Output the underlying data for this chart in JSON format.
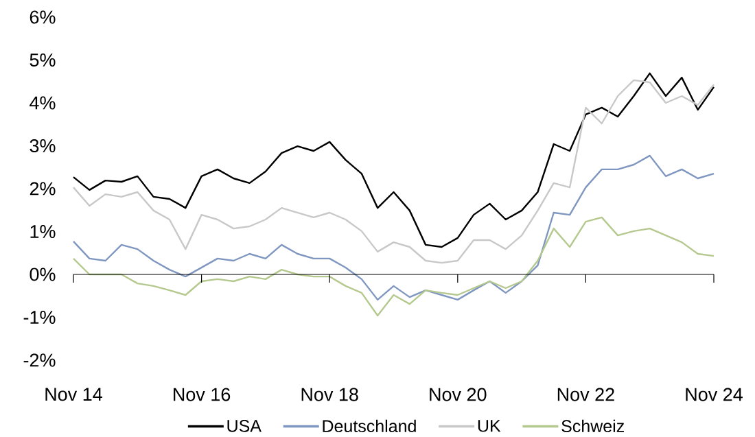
{
  "chart_data": {
    "type": "line",
    "x": [
      "2014-11",
      "2015-02",
      "2015-05",
      "2015-08",
      "2015-11",
      "2016-02",
      "2016-05",
      "2016-08",
      "2016-11",
      "2017-02",
      "2017-05",
      "2017-08",
      "2017-11",
      "2018-02",
      "2018-05",
      "2018-08",
      "2018-11",
      "2019-02",
      "2019-05",
      "2019-08",
      "2019-11",
      "2020-02",
      "2020-05",
      "2020-08",
      "2020-11",
      "2021-02",
      "2021-05",
      "2021-08",
      "2021-11",
      "2022-02",
      "2022-05",
      "2022-08",
      "2022-11",
      "2023-02",
      "2023-05",
      "2023-08",
      "2023-11",
      "2024-02",
      "2024-05",
      "2024-08",
      "2024-11"
    ],
    "series": [
      {
        "name": "USA",
        "color": "#000000",
        "values": [
          2.27,
          1.97,
          2.19,
          2.16,
          2.29,
          1.81,
          1.76,
          1.55,
          2.29,
          2.45,
          2.24,
          2.13,
          2.4,
          2.83,
          2.99,
          2.88,
          3.09,
          2.67,
          2.35,
          1.55,
          1.92,
          1.49,
          0.69,
          0.64,
          0.85,
          1.39,
          1.65,
          1.28,
          1.49,
          1.92,
          3.04,
          2.88,
          3.73,
          3.89,
          3.68,
          4.16,
          4.69,
          4.16,
          4.59,
          3.84,
          4.37
        ]
      },
      {
        "name": "Deutschland",
        "color": "#7f97c0",
        "values": [
          0.77,
          0.37,
          0.32,
          0.69,
          0.59,
          0.32,
          0.11,
          -0.05,
          0.16,
          0.37,
          0.32,
          0.48,
          0.37,
          0.69,
          0.48,
          0.37,
          0.37,
          0.16,
          -0.11,
          -0.59,
          -0.27,
          -0.53,
          -0.37,
          -0.48,
          -0.59,
          -0.37,
          -0.16,
          -0.43,
          -0.16,
          0.21,
          1.44,
          1.39,
          2.03,
          2.45,
          2.45,
          2.56,
          2.77,
          2.29,
          2.45,
          2.24,
          2.35
        ]
      },
      {
        "name": "UK",
        "color": "#c8c8c8",
        "values": [
          2.03,
          1.6,
          1.87,
          1.81,
          1.92,
          1.49,
          1.28,
          0.59,
          1.39,
          1.28,
          1.07,
          1.12,
          1.28,
          1.55,
          1.44,
          1.33,
          1.44,
          1.28,
          1.01,
          0.53,
          0.75,
          0.64,
          0.32,
          0.27,
          0.32,
          0.8,
          0.8,
          0.59,
          0.91,
          1.49,
          2.13,
          2.03,
          3.89,
          3.52,
          4.16,
          4.53,
          4.48,
          4.0,
          4.16,
          3.95,
          4.43
        ]
      },
      {
        "name": "Schweiz",
        "color": "#b5c98f",
        "values": [
          0.37,
          0,
          0,
          0,
          -0.21,
          -0.27,
          -0.37,
          -0.48,
          -0.16,
          -0.11,
          -0.16,
          -0.05,
          -0.11,
          0.11,
          0,
          -0.05,
          -0.05,
          -0.27,
          -0.43,
          -0.96,
          -0.48,
          -0.69,
          -0.37,
          -0.43,
          -0.48,
          -0.32,
          -0.16,
          -0.32,
          -0.16,
          0.32,
          1.07,
          0.64,
          1.23,
          1.33,
          0.91,
          1.01,
          1.07,
          0.91,
          0.75,
          0.48,
          0.43
        ]
      }
    ],
    "xlim": [
      "2014-11",
      "2024-11"
    ],
    "xticks": [
      {
        "value": "2014-11",
        "label": "Nov 14"
      },
      {
        "value": "2016-11",
        "label": "Nov 16"
      },
      {
        "value": "2018-11",
        "label": "Nov 18"
      },
      {
        "value": "2020-11",
        "label": "Nov 20"
      },
      {
        "value": "2022-11",
        "label": "Nov 22"
      },
      {
        "value": "2024-11",
        "label": "Nov 24"
      }
    ],
    "ylim": [
      -2,
      6
    ],
    "yticks": [
      {
        "value": -2,
        "label": "-2%"
      },
      {
        "value": -1,
        "label": "-1%"
      },
      {
        "value": 0,
        "label": "0%"
      },
      {
        "value": 1,
        "label": "1%"
      },
      {
        "value": 2,
        "label": "2%"
      },
      {
        "value": 3,
        "label": "3%"
      },
      {
        "value": 4,
        "label": "4%"
      },
      {
        "value": 5,
        "label": "5%"
      },
      {
        "value": 6,
        "label": "6%"
      }
    ],
    "legend": "bottom"
  }
}
